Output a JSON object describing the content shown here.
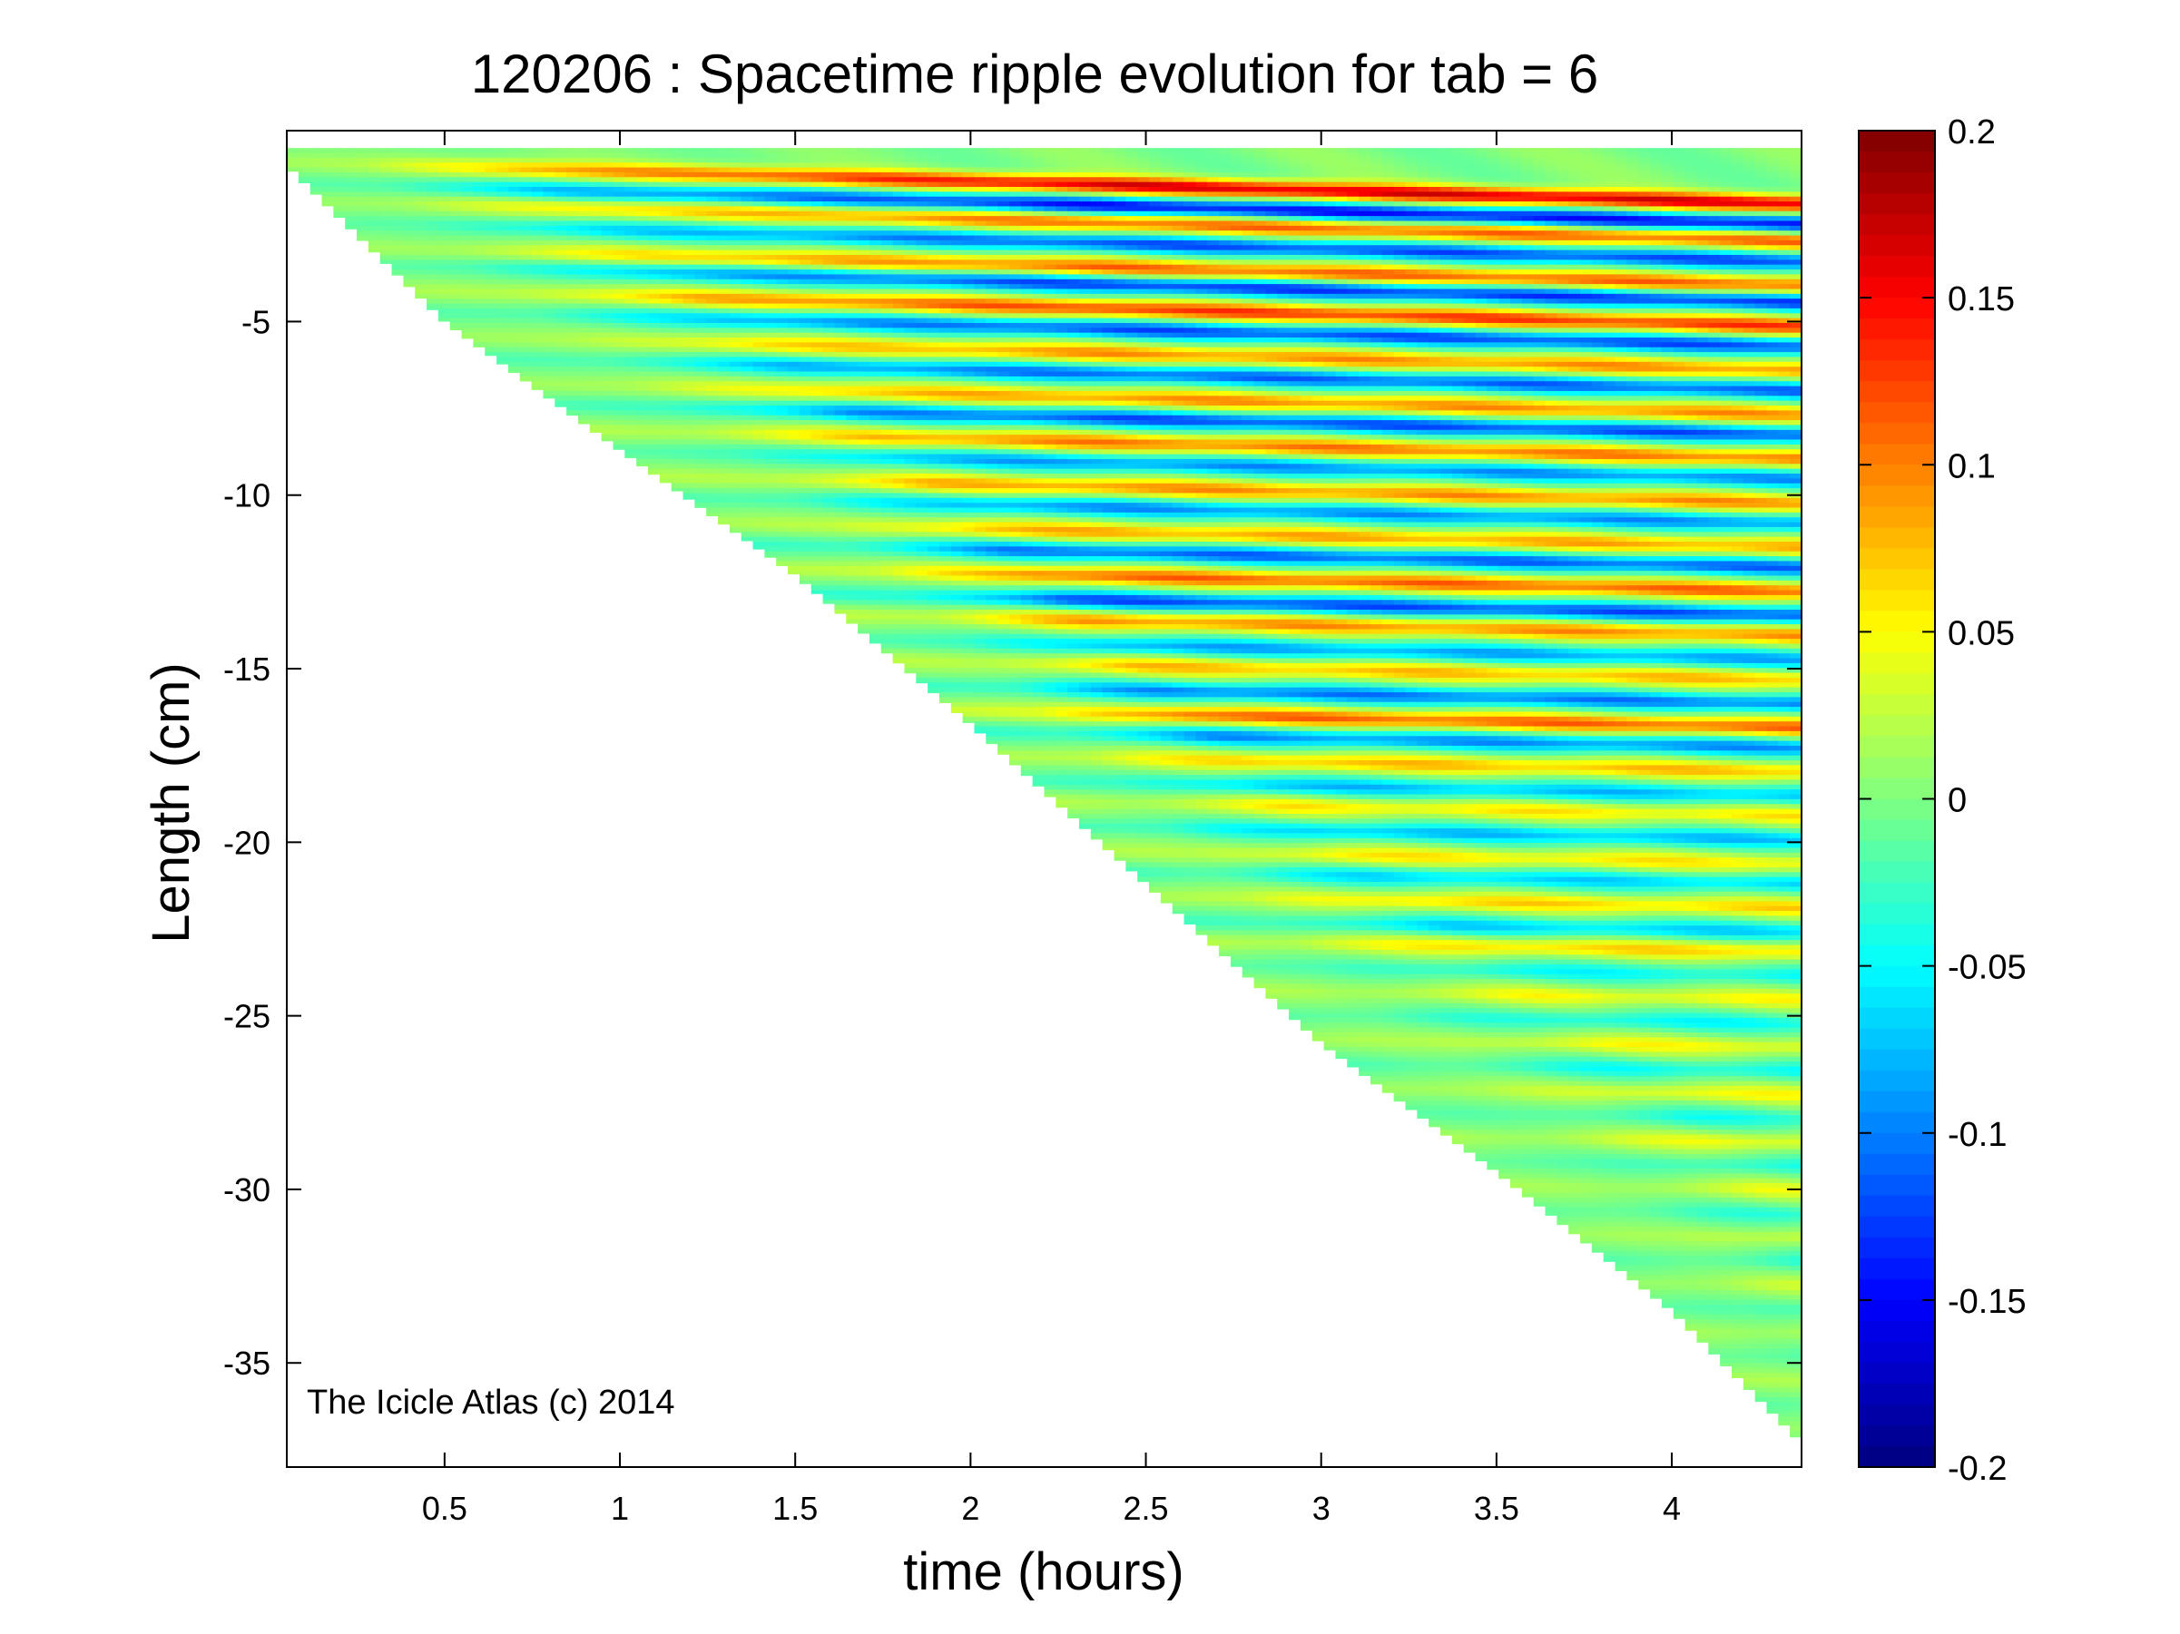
{
  "chart_data": {
    "type": "heatmap",
    "title": "120206 : Spacetime ripple evolution for tab = 6",
    "xlabel": "time (hours)",
    "ylabel": "Length (cm)",
    "xlim": [
      0.05,
      4.37
    ],
    "ylim": [
      -38,
      0.5
    ],
    "x_ticks": [
      0.5,
      1,
      1.5,
      2,
      2.5,
      3,
      3.5,
      4
    ],
    "x_tick_labels": [
      "0.5",
      "1",
      "1.5",
      "2",
      "2.5",
      "3",
      "3.5",
      "4"
    ],
    "y_ticks": [
      -5,
      -10,
      -15,
      -20,
      -25,
      -30,
      -35
    ],
    "y_tick_labels": [
      "-5",
      "-10",
      "-15",
      "-20",
      "-25",
      "-30",
      "-35"
    ],
    "colorbar": {
      "colormap": "jet",
      "range": [
        -0.2,
        0.2
      ],
      "ticks": [
        0.2,
        0.15,
        0.1,
        0.05,
        0,
        -0.05,
        -0.1,
        -0.15,
        -0.2
      ],
      "tick_labels": [
        "0.2",
        "0.15",
        "0.1",
        "0.05",
        "0",
        "-0.05",
        "-0.1",
        "-0.15",
        "-0.2"
      ]
    },
    "data_boundary": {
      "description": "icicle tip length vs time; data exists only above the boundary",
      "points": [
        [
          0.05,
          -0.5
        ],
        [
          0.5,
          -5
        ],
        [
          1,
          -8.7
        ],
        [
          1.5,
          -12.3
        ],
        [
          2,
          -16.6
        ],
        [
          2.5,
          -21.2
        ],
        [
          3,
          -25.8
        ],
        [
          3.5,
          -29.5
        ],
        [
          4,
          -33.5
        ],
        [
          4.37,
          -37.3
        ]
      ]
    },
    "ripple_bands": [
      {
        "y0": -0.4,
        "amp": 0.18
      },
      {
        "y0": -1.0,
        "amp": -0.16
      },
      {
        "y0": -1.5,
        "amp": 0.12
      },
      {
        "y0": -2.1,
        "amp": -0.13
      },
      {
        "y0": -2.8,
        "amp": 0.12
      },
      {
        "y0": -3.3,
        "amp": -0.14
      },
      {
        "y0": -4.0,
        "amp": 0.14
      },
      {
        "y0": -4.6,
        "amp": -0.13
      },
      {
        "y0": -5.3,
        "amp": 0.1
      },
      {
        "y0": -5.9,
        "amp": -0.12
      },
      {
        "y0": -6.6,
        "amp": 0.1
      },
      {
        "y0": -7.2,
        "amp": -0.13
      },
      {
        "y0": -7.9,
        "amp": 0.11
      },
      {
        "y0": -8.5,
        "amp": -0.1
      },
      {
        "y0": -9.2,
        "amp": 0.1
      },
      {
        "y0": -9.8,
        "amp": -0.1
      },
      {
        "y0": -10.5,
        "amp": 0.09
      },
      {
        "y0": -11.1,
        "amp": -0.12
      },
      {
        "y0": -11.8,
        "amp": 0.12
      },
      {
        "y0": -12.5,
        "amp": -0.13
      },
      {
        "y0": -13.1,
        "amp": 0.1
      },
      {
        "y0": -13.8,
        "amp": -0.09
      },
      {
        "y0": -14.4,
        "amp": 0.08
      },
      {
        "y0": -15.1,
        "amp": -0.11
      },
      {
        "y0": -15.8,
        "amp": 0.12
      },
      {
        "y0": -16.4,
        "amp": -0.1
      },
      {
        "y0": -17.1,
        "amp": 0.08
      },
      {
        "y0": -17.8,
        "amp": -0.08
      },
      {
        "y0": -18.4,
        "amp": 0.06
      },
      {
        "y0": -19.1,
        "amp": -0.08
      },
      {
        "y0": -19.8,
        "amp": 0.06
      },
      {
        "y0": -20.4,
        "amp": -0.07
      },
      {
        "y0": -21.1,
        "amp": 0.07
      },
      {
        "y0": -21.8,
        "amp": -0.07
      },
      {
        "y0": -22.4,
        "amp": 0.07
      },
      {
        "y0": -23.1,
        "amp": -0.05
      },
      {
        "y0": -23.8,
        "amp": 0.05
      },
      {
        "y0": -24.5,
        "amp": -0.05
      },
      {
        "y0": -25.2,
        "amp": 0.05
      },
      {
        "y0": -25.9,
        "amp": -0.05
      },
      {
        "y0": -26.6,
        "amp": 0.05
      },
      {
        "y0": -27.3,
        "amp": -0.04
      },
      {
        "y0": -28.0,
        "amp": 0.05
      },
      {
        "y0": -28.7,
        "amp": -0.04
      },
      {
        "y0": -29.4,
        "amp": 0.04
      },
      {
        "y0": -30.1,
        "amp": -0.04
      },
      {
        "y0": -30.8,
        "amp": 0.04
      },
      {
        "y0": -31.5,
        "amp": -0.04
      },
      {
        "y0": -32.2,
        "amp": 0.04
      },
      {
        "y0": -32.9,
        "amp": -0.04
      },
      {
        "y0": -33.6,
        "amp": 0.04
      },
      {
        "y0": -34.3,
        "amp": -0.04
      },
      {
        "y0": -35.0,
        "amp": 0.05
      },
      {
        "y0": -35.7,
        "amp": -0.04
      },
      {
        "y0": -36.4,
        "amp": 0.04
      }
    ],
    "annotation": "The Icicle Atlas (c) 2014"
  }
}
